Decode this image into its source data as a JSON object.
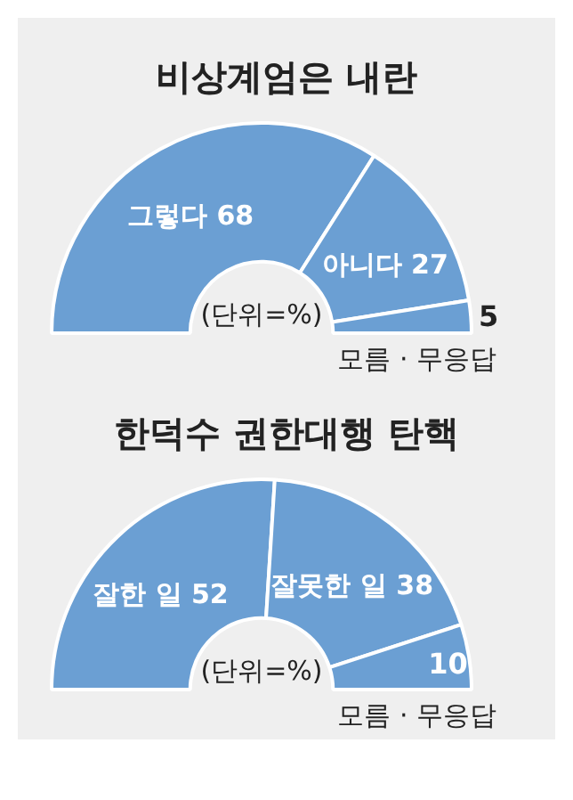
{
  "chart_data": [
    {
      "type": "donut",
      "title": "비상계엄은 내란",
      "categories": [
        "그렇다",
        "아니다",
        "모름 · 무응답"
      ],
      "values": [
        68,
        27,
        5
      ],
      "colors": [
        "#6b9fd3",
        "#6b9fd3",
        "#6b9fd3"
      ],
      "data_labels": true,
      "annotations": [
        "(단위=%)"
      ]
    },
    {
      "type": "donut",
      "title": "한덕수 권한대행 탄핵",
      "categories": [
        "잘한 일",
        "잘못한 일",
        "모름 · 무응답"
      ],
      "values": [
        52,
        38,
        10
      ],
      "colors": [
        "#6b9fd3",
        "#6b9fd3",
        "#6b9fd3"
      ],
      "data_labels": true,
      "annotations": [
        "(단위=%)"
      ]
    }
  ]
}
